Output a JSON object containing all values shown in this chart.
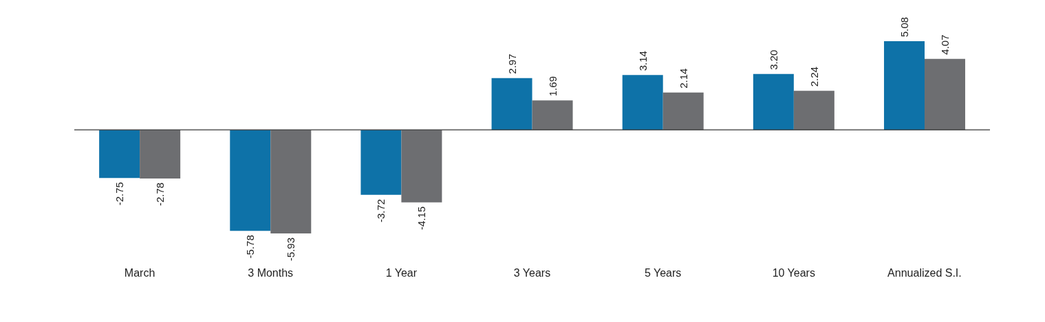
{
  "chart_data": {
    "type": "bar",
    "categories": [
      "March",
      "3 Months",
      "1 Year",
      "3 Years",
      "5 Years",
      "10 Years",
      "Annualized S.I."
    ],
    "series": [
      {
        "color": "#0e72a8",
        "values": [
          -2.75,
          -5.78,
          -3.72,
          2.97,
          3.14,
          3.2,
          5.08
        ],
        "value_labels": [
          "-2.75",
          "-5.78",
          "-3.72",
          "2.97",
          "3.14",
          "3.20",
          "5.08"
        ]
      },
      {
        "color": "#6d6e71",
        "values": [
          -2.78,
          -5.93,
          -4.15,
          1.69,
          2.14,
          2.24,
          4.07
        ],
        "value_labels": [
          "-2.78",
          "-5.93",
          "-4.15",
          "1.69",
          "2.14",
          "2.24",
          "4.07"
        ]
      }
    ]
  }
}
